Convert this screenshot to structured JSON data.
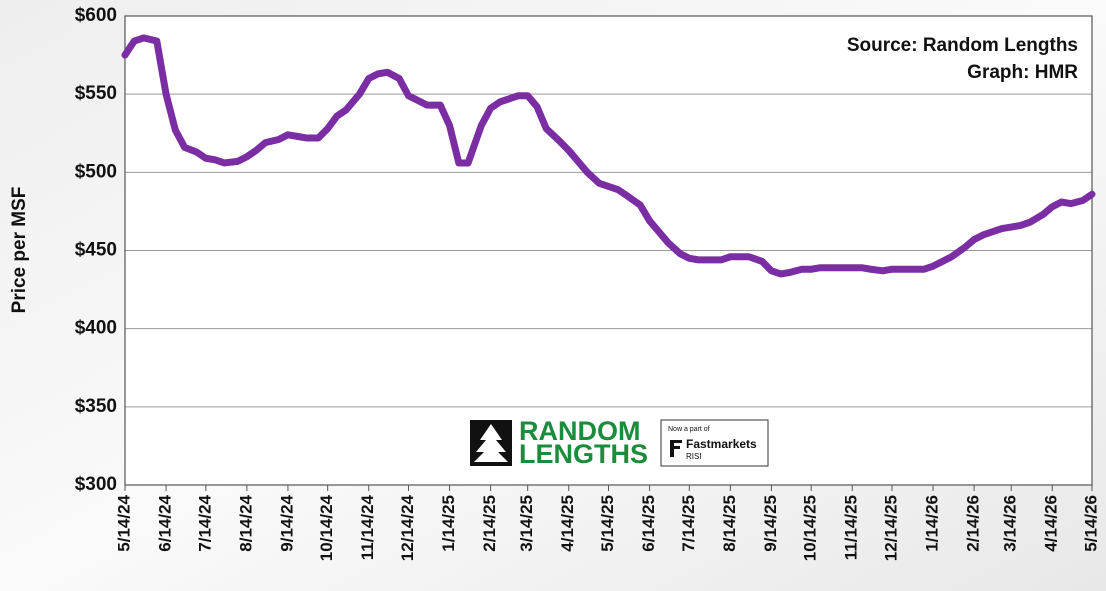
{
  "chart_data": {
    "type": "line",
    "annotations": [
      "Source: Random Lengths",
      "Graph: HMR"
    ],
    "ylabel": "Price per MSF",
    "logo": {
      "brand_line1": "RANDOM",
      "brand_line2": "LENGTHS",
      "tagline": "Now a part of",
      "partner": "Fastmarkets",
      "partner_sub": "RISI"
    },
    "x": [
      "5/14/24",
      "5/21/24",
      "5/28/24",
      "6/7/24",
      "6/14/24",
      "6/21/24",
      "6/28/24",
      "7/7/24",
      "7/14/24",
      "7/21/24",
      "7/28/24",
      "8/7/24",
      "8/14/24",
      "8/21/24",
      "8/28/24",
      "9/7/24",
      "9/14/24",
      "9/21/24",
      "9/28/24",
      "10/7/24",
      "10/14/24",
      "10/21/24",
      "10/28/24",
      "11/7/24",
      "11/14/24",
      "11/21/24",
      "11/28/24",
      "12/7/24",
      "12/14/24",
      "12/21/24",
      "12/28/24",
      "1/7/25",
      "1/14/25",
      "1/21/25",
      "1/28/25",
      "2/7/25",
      "2/14/25",
      "2/21/25",
      "2/28/25",
      "3/7/25",
      "3/14/25",
      "3/21/25",
      "3/28/25",
      "4/7/25",
      "4/14/25",
      "4/21/25",
      "4/28/25",
      "5/7/25",
      "5/14/25",
      "5/21/25",
      "5/28/25",
      "6/7/25",
      "6/14/25",
      "6/21/25",
      "6/28/25",
      "7/7/25",
      "7/14/25",
      "7/21/25",
      "7/28/25",
      "8/7/25",
      "8/14/25",
      "8/21/25",
      "8/28/25",
      "9/7/25",
      "9/14/25",
      "9/21/25",
      "9/28/25",
      "10/7/25",
      "10/14/25",
      "10/21/25",
      "10/28/25",
      "11/7/25",
      "11/14/25",
      "11/21/25",
      "11/28/25",
      "12/7/25",
      "12/14/25",
      "12/21/25",
      "12/28/25",
      "1/7/26",
      "1/14/26",
      "1/21/26",
      "1/28/26",
      "2/7/26",
      "2/14/26",
      "2/21/26",
      "2/28/26",
      "3/7/26",
      "3/14/26",
      "3/21/26",
      "3/28/26",
      "4/7/26",
      "4/14/26",
      "4/21/26",
      "4/28/26",
      "5/7/26",
      "5/14/26"
    ],
    "series": [
      {
        "color": "#7b2ea3",
        "values": [
          575,
          584,
          586,
          584,
          550,
          527,
          516,
          513,
          509,
          508,
          506,
          507,
          510,
          514,
          519,
          521,
          524,
          523,
          522,
          522,
          528,
          536,
          540,
          550,
          560,
          563,
          564,
          560,
          549,
          546,
          543,
          543,
          530,
          506,
          506,
          530,
          541,
          545,
          547,
          549,
          549,
          542,
          528,
          520,
          514,
          507,
          500,
          493,
          491,
          489,
          485,
          479,
          469,
          462,
          455,
          448,
          445,
          444,
          444,
          444,
          446,
          446,
          446,
          443,
          437,
          435,
          436,
          438,
          438,
          439,
          439,
          439,
          439,
          439,
          438,
          437,
          438,
          438,
          438,
          438,
          440,
          443,
          446,
          452,
          457,
          460,
          462,
          464,
          465,
          466,
          468,
          473,
          478,
          481,
          480,
          482,
          486
        ]
      }
    ],
    "xlim": [
      "5/14/24",
      "5/14/26"
    ],
    "xticks": [
      "5/14/24",
      "6/14/24",
      "7/14/24",
      "8/14/24",
      "9/14/24",
      "10/14/24",
      "11/14/24",
      "12/14/24",
      "1/14/25",
      "2/14/25",
      "3/14/25",
      "4/14/25",
      "5/14/25",
      "6/14/25",
      "7/14/25",
      "8/14/25",
      "9/14/25",
      "10/14/25",
      "11/14/25",
      "12/14/25",
      "1/14/26",
      "2/14/26",
      "3/14/26",
      "4/14/26",
      "5/14/26"
    ],
    "ylim": [
      300,
      600
    ],
    "yticks": [
      {
        "value": 300,
        "label": "$300"
      },
      {
        "value": 350,
        "label": "$350"
      },
      {
        "value": 400,
        "label": "$400"
      },
      {
        "value": 450,
        "label": "$450"
      },
      {
        "value": 500,
        "label": "$500"
      },
      {
        "value": 550,
        "label": "$550"
      },
      {
        "value": 600,
        "label": "$600"
      }
    ],
    "grid": true
  }
}
